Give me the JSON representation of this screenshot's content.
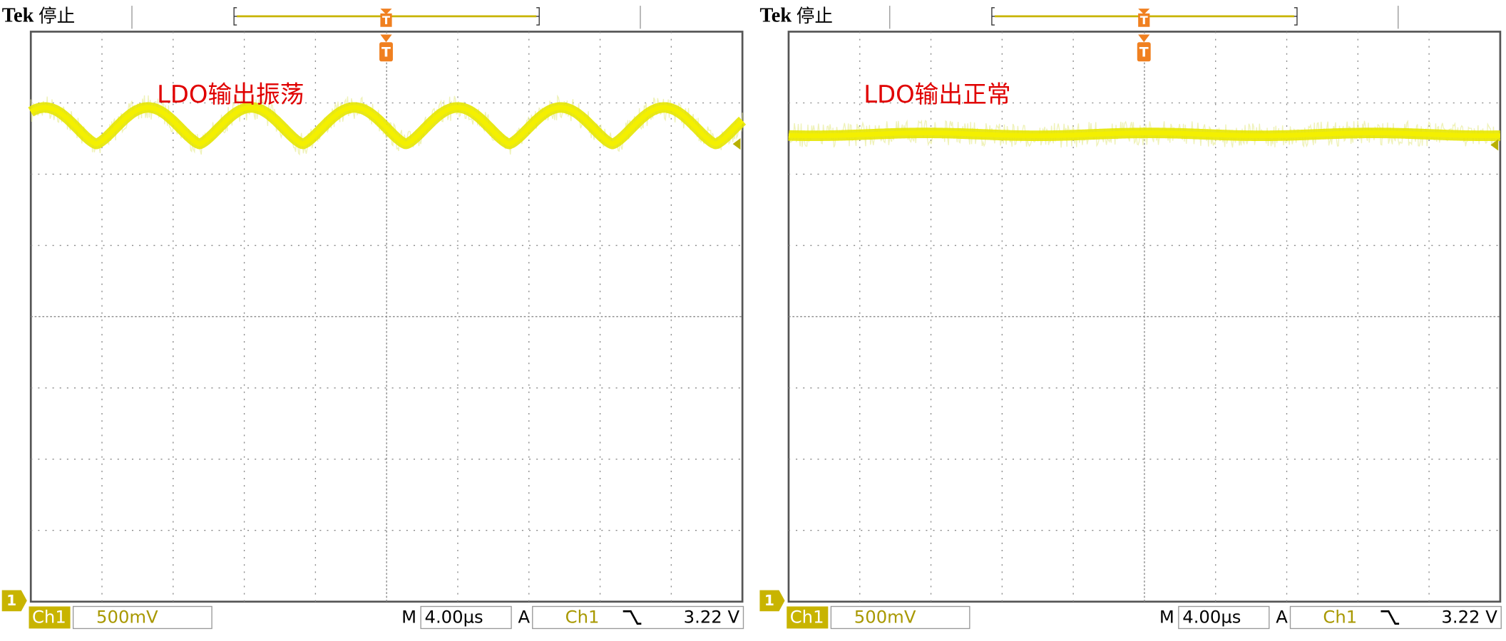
{
  "scopes": [
    {
      "brand": "Tek",
      "status": "停止",
      "trigger_marker": "T",
      "annotation": "LDO输出振荡",
      "channel_marker": "1",
      "channel": "Ch1",
      "scale": "500mV",
      "timebase_label": "M",
      "timebase": "4.00µs",
      "trigger_label": "A",
      "trigger_source": "Ch1",
      "trigger_level": "3.22 V"
    },
    {
      "brand": "Tek",
      "status": "停止",
      "trigger_marker": "T",
      "annotation": "LDO输出正常",
      "channel_marker": "1",
      "channel": "Ch1",
      "scale": "500mV",
      "timebase_label": "M",
      "timebase": "4.00µs",
      "trigger_label": "A",
      "trigger_source": "Ch1",
      "trigger_level": "3.22 V"
    }
  ]
}
